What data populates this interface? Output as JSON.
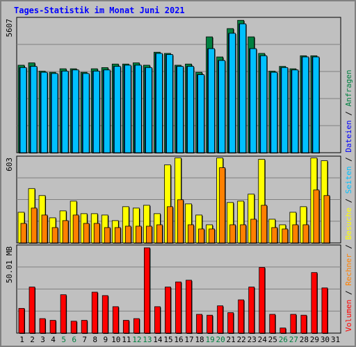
{
  "title": "Tages-Statistik im Monat Juni 2021",
  "colors": {
    "anfragen": "#008040",
    "dateien": "#0000ff",
    "seiten": "#00c0ff",
    "besuche": "#ffff00",
    "rechner": "#ff8000",
    "volumen": "#ff0000",
    "weekend_label": "#008040",
    "weekday_label": "#000000",
    "panel_bg": "#c0c0c0",
    "grid": "#808080"
  },
  "chart_data": [
    {
      "type": "bar",
      "ymax_label": "5607",
      "ymax": 5607,
      "series": [
        {
          "name": "Anfragen",
          "values": [
            3700,
            3800,
            3450,
            3400,
            3550,
            3550,
            3400,
            3550,
            3600,
            3750,
            3750,
            3800,
            3700,
            4250,
            4200,
            3700,
            3750,
            3400,
            4900,
            4050,
            5250,
            5600,
            4900,
            4200,
            3450,
            3650,
            3550,
            4100,
            4100,
            0
          ]
        },
        {
          "name": "Dateien",
          "values": [
            3600,
            3650,
            3400,
            3350,
            3450,
            3500,
            3350,
            3450,
            3500,
            3650,
            3700,
            3700,
            3600,
            4200,
            4150,
            3650,
            3650,
            3300,
            4400,
            3900,
            5050,
            5450,
            4400,
            4100,
            3400,
            3600,
            3500,
            4050,
            4050,
            0
          ]
        },
        {
          "name": "Seiten",
          "values": [
            3600,
            3650,
            3400,
            3350,
            3450,
            3500,
            3350,
            3450,
            3500,
            3650,
            3700,
            3700,
            3600,
            4200,
            4150,
            3650,
            3650,
            3300,
            4400,
            3900,
            5050,
            5450,
            4400,
            4100,
            3400,
            3600,
            3500,
            4050,
            4050,
            0
          ]
        }
      ],
      "right_labels": [
        "Anfragen",
        "Dateien",
        "Seiten"
      ]
    },
    {
      "type": "bar",
      "ymax_label": "603",
      "ymax": 603,
      "series": [
        {
          "name": "Besuche",
          "values": [
            220,
            390,
            340,
            180,
            230,
            300,
            210,
            210,
            200,
            160,
            260,
            250,
            270,
            210,
            560,
            610,
            280,
            200,
            130,
            610,
            290,
            300,
            350,
            600,
            170,
            130,
            220,
            260,
            610,
            590
          ]
        },
        {
          "name": "Rechner",
          "values": [
            140,
            250,
            200,
            110,
            160,
            200,
            140,
            140,
            110,
            110,
            120,
            120,
            120,
            130,
            260,
            310,
            130,
            100,
            100,
            540,
            130,
            130,
            170,
            270,
            110,
            100,
            130,
            130,
            380,
            340
          ]
        }
      ],
      "right_labels": [
        "Besuche",
        "Rechner"
      ]
    },
    {
      "type": "bar",
      "ymax_label": "50.01 MB",
      "ymax": 50.01,
      "series": [
        {
          "name": "Volumen",
          "values": [
            14.5,
            27.0,
            8.5,
            7.5,
            22.5,
            7.0,
            7.5,
            24.0,
            22.0,
            15.5,
            7.5,
            8.5,
            50.0,
            15.5,
            27.0,
            30.0,
            31.0,
            11.0,
            10.5,
            16.0,
            12.0,
            19.5,
            27.0,
            38.5,
            11.0,
            3.0,
            11.0,
            10.5,
            35.5,
            26.5
          ]
        }
      ],
      "right_labels": [
        "Volumen"
      ]
    }
  ],
  "x_labels": [
    "1",
    "2",
    "3",
    "4",
    "5",
    "6",
    "7",
    "8",
    "9",
    "10",
    "11",
    "12",
    "13",
    "14",
    "15",
    "16",
    "17",
    "18",
    "19",
    "20",
    "21",
    "22",
    "23",
    "24",
    "25",
    "26",
    "27",
    "28",
    "29",
    "30",
    "31"
  ],
  "weekend_days": [
    5,
    6,
    12,
    13,
    19,
    20,
    26,
    27
  ]
}
